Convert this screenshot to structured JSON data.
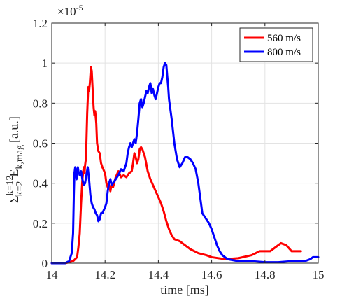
{
  "chart_data": {
    "type": "line",
    "title": "",
    "xlabel": "time [ms]",
    "ylabel": {
      "sum_symbol": "Σ",
      "upper_index": "k=12",
      "lower_index": "k=2",
      "quantity": "E",
      "subscript": "k,mag",
      "units": "[a.u.]"
    },
    "y_exponent": {
      "base": "×10",
      "power": "-5"
    },
    "xlim": [
      14,
      15
    ],
    "ylim": [
      0,
      1.2
    ],
    "x_ticks": [
      14,
      14.2,
      14.4,
      14.6,
      14.8,
      15
    ],
    "x_tick_labels": [
      "14",
      "14.2",
      "14.4",
      "14.6",
      "14.8",
      "15"
    ],
    "y_ticks": [
      0,
      0.2,
      0.4,
      0.6,
      0.8,
      1,
      1.2
    ],
    "y_tick_labels": [
      "0",
      "0.2",
      "0.4",
      "0.6",
      "0.8",
      "1",
      "1.2"
    ],
    "grid": true,
    "legend_position": "top-right",
    "series": [
      {
        "name": "560 m/s",
        "color": "#ff0000",
        "points": [
          [
            14.0,
            0.0
          ],
          [
            14.05,
            0.0
          ],
          [
            14.08,
            0.01
          ],
          [
            14.095,
            0.03
          ],
          [
            14.1,
            0.08
          ],
          [
            14.105,
            0.15
          ],
          [
            14.11,
            0.3
          ],
          [
            14.115,
            0.42
          ],
          [
            14.12,
            0.48
          ],
          [
            14.123,
            0.45
          ],
          [
            14.125,
            0.49
          ],
          [
            14.128,
            0.52
          ],
          [
            14.13,
            0.6
          ],
          [
            14.133,
            0.75
          ],
          [
            14.137,
            0.88
          ],
          [
            14.14,
            0.86
          ],
          [
            14.143,
            0.9
          ],
          [
            14.147,
            0.98
          ],
          [
            14.15,
            0.96
          ],
          [
            14.153,
            0.88
          ],
          [
            14.157,
            0.78
          ],
          [
            14.16,
            0.74
          ],
          [
            14.163,
            0.76
          ],
          [
            14.167,
            0.7
          ],
          [
            14.17,
            0.6
          ],
          [
            14.175,
            0.56
          ],
          [
            14.18,
            0.55
          ],
          [
            14.185,
            0.5
          ],
          [
            14.19,
            0.48
          ],
          [
            14.2,
            0.45
          ],
          [
            14.205,
            0.4
          ],
          [
            14.21,
            0.38
          ],
          [
            14.215,
            0.39
          ],
          [
            14.22,
            0.36
          ],
          [
            14.225,
            0.4
          ],
          [
            14.23,
            0.38
          ],
          [
            14.24,
            0.43
          ],
          [
            14.25,
            0.46
          ],
          [
            14.26,
            0.43
          ],
          [
            14.27,
            0.44
          ],
          [
            14.28,
            0.43
          ],
          [
            14.29,
            0.45
          ],
          [
            14.3,
            0.46
          ],
          [
            14.305,
            0.5
          ],
          [
            14.31,
            0.55
          ],
          [
            14.315,
            0.53
          ],
          [
            14.32,
            0.5
          ],
          [
            14.325,
            0.52
          ],
          [
            14.33,
            0.57
          ],
          [
            14.335,
            0.58
          ],
          [
            14.34,
            0.57
          ],
          [
            14.35,
            0.53
          ],
          [
            14.36,
            0.46
          ],
          [
            14.37,
            0.42
          ],
          [
            14.38,
            0.39
          ],
          [
            14.39,
            0.36
          ],
          [
            14.4,
            0.33
          ],
          [
            14.41,
            0.3
          ],
          [
            14.42,
            0.26
          ],
          [
            14.43,
            0.21
          ],
          [
            14.44,
            0.17
          ],
          [
            14.45,
            0.14
          ],
          [
            14.46,
            0.12
          ],
          [
            14.48,
            0.11
          ],
          [
            14.5,
            0.09
          ],
          [
            14.52,
            0.07
          ],
          [
            14.55,
            0.05
          ],
          [
            14.58,
            0.04
          ],
          [
            14.6,
            0.03
          ],
          [
            14.65,
            0.02
          ],
          [
            14.7,
            0.025
          ],
          [
            14.75,
            0.04
          ],
          [
            14.78,
            0.06
          ],
          [
            14.8,
            0.06
          ],
          [
            14.82,
            0.06
          ],
          [
            14.84,
            0.08
          ],
          [
            14.86,
            0.1
          ],
          [
            14.88,
            0.09
          ],
          [
            14.9,
            0.06
          ],
          [
            14.935,
            0.06
          ]
        ]
      },
      {
        "name": "800 m/s",
        "color": "#0000ff",
        "points": [
          [
            14.0,
            0.0
          ],
          [
            14.05,
            0.0
          ],
          [
            14.065,
            0.01
          ],
          [
            14.075,
            0.05
          ],
          [
            14.08,
            0.15
          ],
          [
            14.083,
            0.35
          ],
          [
            14.085,
            0.45
          ],
          [
            14.088,
            0.48
          ],
          [
            14.09,
            0.47
          ],
          [
            14.093,
            0.42
          ],
          [
            14.095,
            0.45
          ],
          [
            14.098,
            0.48
          ],
          [
            14.1,
            0.46
          ],
          [
            14.105,
            0.44
          ],
          [
            14.11,
            0.46
          ],
          [
            14.115,
            0.42
          ],
          [
            14.12,
            0.39
          ],
          [
            14.125,
            0.4
          ],
          [
            14.13,
            0.44
          ],
          [
            14.135,
            0.48
          ],
          [
            14.14,
            0.42
          ],
          [
            14.145,
            0.34
          ],
          [
            14.15,
            0.3
          ],
          [
            14.155,
            0.28
          ],
          [
            14.16,
            0.27
          ],
          [
            14.165,
            0.25
          ],
          [
            14.17,
            0.24
          ],
          [
            14.175,
            0.21
          ],
          [
            14.18,
            0.22
          ],
          [
            14.185,
            0.25
          ],
          [
            14.19,
            0.25
          ],
          [
            14.2,
            0.28
          ],
          [
            14.205,
            0.3
          ],
          [
            14.21,
            0.36
          ],
          [
            14.215,
            0.4
          ],
          [
            14.22,
            0.42
          ],
          [
            14.225,
            0.39
          ],
          [
            14.23,
            0.4
          ],
          [
            14.24,
            0.42
          ],
          [
            14.25,
            0.44
          ],
          [
            14.26,
            0.47
          ],
          [
            14.27,
            0.46
          ],
          [
            14.28,
            0.5
          ],
          [
            14.285,
            0.55
          ],
          [
            14.29,
            0.58
          ],
          [
            14.295,
            0.6
          ],
          [
            14.3,
            0.58
          ],
          [
            14.305,
            0.6
          ],
          [
            14.31,
            0.62
          ],
          [
            14.315,
            0.6
          ],
          [
            14.32,
            0.65
          ],
          [
            14.325,
            0.72
          ],
          [
            14.33,
            0.8
          ],
          [
            14.335,
            0.82
          ],
          [
            14.34,
            0.78
          ],
          [
            14.345,
            0.8
          ],
          [
            14.35,
            0.83
          ],
          [
            14.355,
            0.86
          ],
          [
            14.36,
            0.85
          ],
          [
            14.365,
            0.88
          ],
          [
            14.37,
            0.9
          ],
          [
            14.375,
            0.85
          ],
          [
            14.38,
            0.87
          ],
          [
            14.385,
            0.84
          ],
          [
            14.39,
            0.82
          ],
          [
            14.395,
            0.85
          ],
          [
            14.4,
            0.88
          ],
          [
            14.405,
            0.9
          ],
          [
            14.41,
            0.9
          ],
          [
            14.415,
            0.93
          ],
          [
            14.42,
            0.98
          ],
          [
            14.425,
            1.0
          ],
          [
            14.43,
            0.99
          ],
          [
            14.433,
            0.94
          ],
          [
            14.437,
            0.88
          ],
          [
            14.44,
            0.82
          ],
          [
            14.45,
            0.72
          ],
          [
            14.46,
            0.6
          ],
          [
            14.47,
            0.52
          ],
          [
            14.48,
            0.48
          ],
          [
            14.49,
            0.5
          ],
          [
            14.5,
            0.53
          ],
          [
            14.51,
            0.53
          ],
          [
            14.52,
            0.52
          ],
          [
            14.53,
            0.5
          ],
          [
            14.54,
            0.47
          ],
          [
            14.55,
            0.4
          ],
          [
            14.56,
            0.3
          ],
          [
            14.565,
            0.25
          ],
          [
            14.57,
            0.24
          ],
          [
            14.58,
            0.22
          ],
          [
            14.59,
            0.2
          ],
          [
            14.6,
            0.17
          ],
          [
            14.61,
            0.13
          ],
          [
            14.62,
            0.09
          ],
          [
            14.63,
            0.06
          ],
          [
            14.64,
            0.04
          ],
          [
            14.66,
            0.02
          ],
          [
            14.7,
            0.01
          ],
          [
            14.75,
            0.01
          ],
          [
            14.8,
            0.005
          ],
          [
            14.85,
            0.005
          ],
          [
            14.9,
            0.01
          ],
          [
            14.95,
            0.01
          ],
          [
            14.97,
            0.02
          ],
          [
            14.98,
            0.03
          ],
          [
            15.0,
            0.03
          ]
        ]
      }
    ]
  }
}
